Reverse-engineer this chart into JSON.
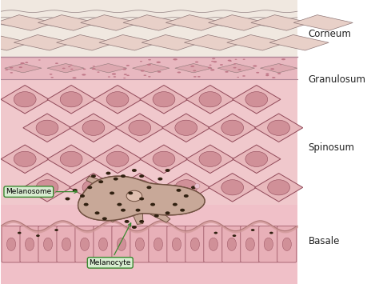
{
  "background_color": "#ffffff",
  "fig_bg": "#f5f0ee",
  "labels": {
    "Corneum": 0.88,
    "Granulosum": 0.72,
    "Spinosum": 0.48,
    "Basale": 0.15
  },
  "corneum_bg": "#f0e8e0",
  "corneum_cell_fill": "#e8d0c8",
  "corneum_cell_edge": "#907878",
  "granulosum_bg": "#e8b8c0",
  "granulosum_cell_fill": "#dda8b0",
  "granulosum_dot_color": "#c07888",
  "spinosum_bg": "#f0c8cc",
  "spinosum_cell_fill": "#e8b8bc",
  "spinosum_cell_edge": "#904858",
  "spinosum_nucleus_fill": "#d09098",
  "basale_bg": "#f0c0c8",
  "basale_cell_fill": "#e8b0b8",
  "basale_cell_edge": "#904858",
  "basale_nucleus_fill": "#d09098",
  "melanocyte_body_fill": "#c8a898",
  "melanocyte_body_edge": "#705040",
  "melanocyte_nucleus_fill": "#e0c0b0",
  "melanosome_color": "#302010",
  "label_box_fill": "#d8ecd0",
  "label_box_edge": "#3a8830",
  "arrow_color": "#3a8830",
  "label_fontsize": 8.5,
  "ann_fontsize": 6.5
}
